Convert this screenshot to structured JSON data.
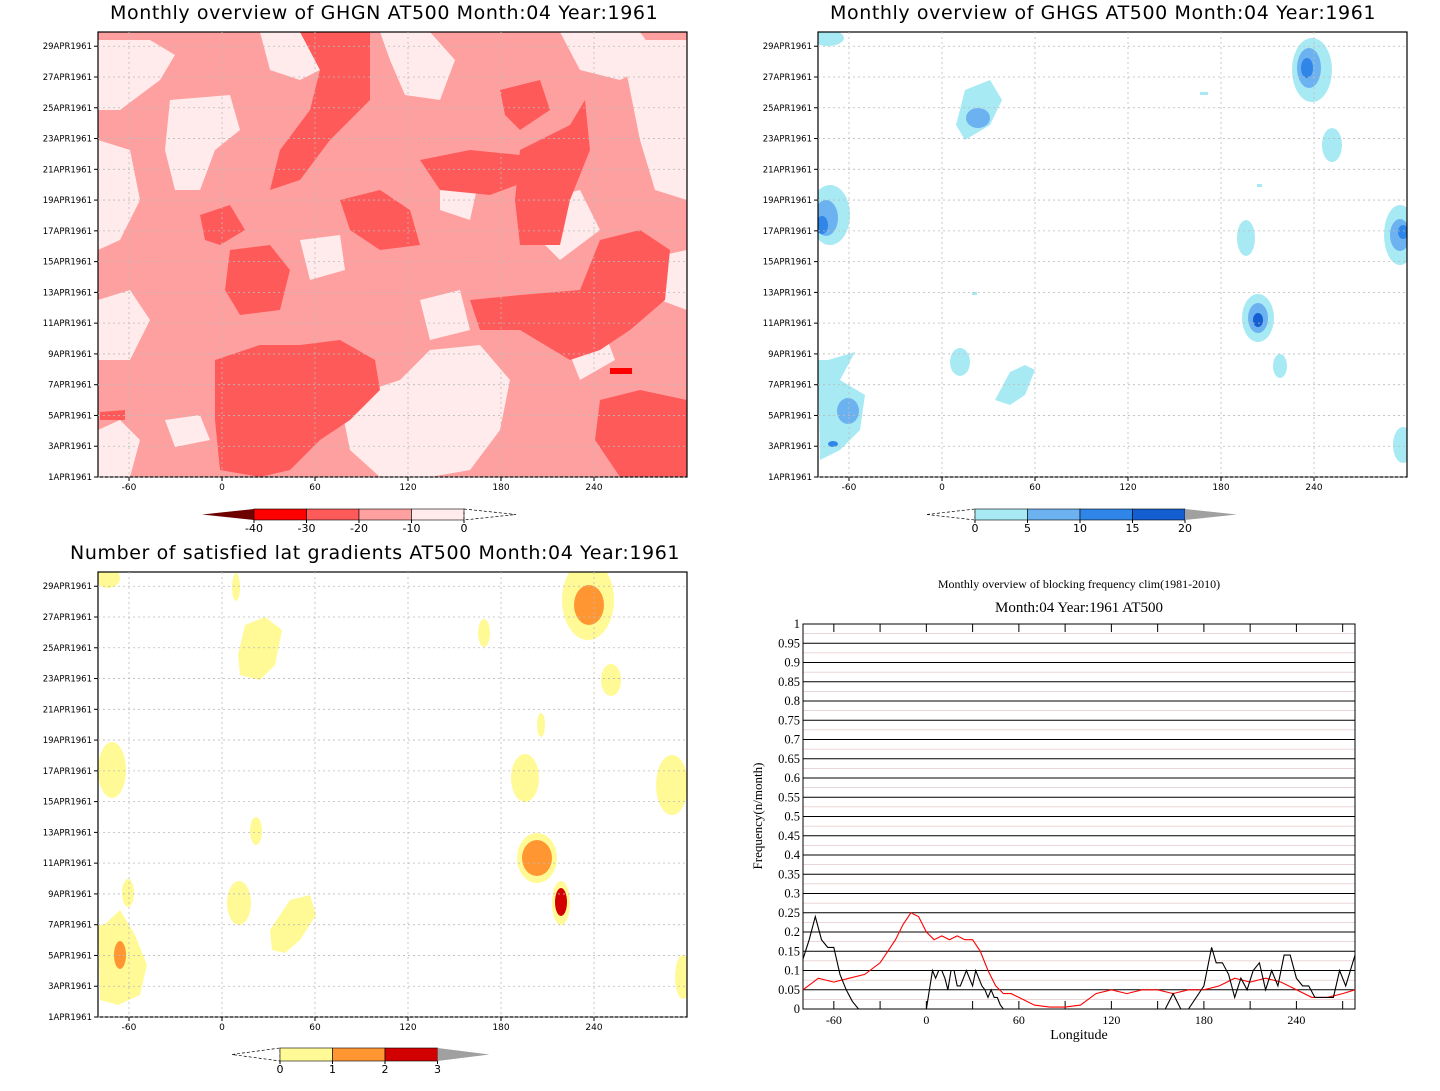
{
  "charts": [
    {
      "title": "Monthly overview of GHGN AT500 Month:04 Year:1961",
      "type": "heatmap",
      "x_ticks": [
        "-60",
        "0",
        "60",
        "120",
        "180",
        "240"
      ],
      "y_ticks": [
        "1APR1961",
        "3APR1961",
        "5APR1961",
        "7APR1961",
        "9APR1961",
        "11APR1961",
        "13APR1961",
        "15APR1961",
        "17APR1961",
        "19APR1961",
        "21APR1961",
        "23APR1961",
        "25APR1961",
        "27APR1961",
        "29APR1961"
      ],
      "colorbar": {
        "labels": [
          "-40",
          "-30",
          "-20",
          "-10",
          "0"
        ],
        "colors": [
          "#6e0000",
          "#ff0000",
          "#ff5a5a",
          "#ffa0a0",
          "#ffebeb"
        ],
        "open_end": "right"
      },
      "field_colors": [
        "#ffebeb",
        "#ffa0a0",
        "#ff5a5a"
      ]
    },
    {
      "title": "Monthly overview of GHGS AT500 Month:04 Year:1961",
      "type": "heatmap",
      "x_ticks": [
        "-60",
        "0",
        "60",
        "120",
        "180",
        "240"
      ],
      "y_ticks": [
        "1APR1961",
        "3APR1961",
        "5APR1961",
        "7APR1961",
        "9APR1961",
        "11APR1961",
        "13APR1961",
        "15APR1961",
        "17APR1961",
        "19APR1961",
        "21APR1961",
        "23APR1961",
        "25APR1961",
        "27APR1961",
        "29APR1961"
      ],
      "colorbar": {
        "labels": [
          "0",
          "5",
          "10",
          "15",
          "20"
        ],
        "colors": [
          "#a8eaf4",
          "#6cb2f0",
          "#2f86e8",
          "#145ed2",
          "#a0a0a0"
        ],
        "open_end": "left"
      }
    },
    {
      "title": "Number of satisfied lat gradients AT500 Month:04 Year:1961",
      "type": "heatmap",
      "x_ticks": [
        "-60",
        "0",
        "60",
        "120",
        "180",
        "240"
      ],
      "y_ticks": [
        "1APR1961",
        "3APR1961",
        "5APR1961",
        "7APR1961",
        "9APR1961",
        "11APR1961",
        "13APR1961",
        "15APR1961",
        "17APR1961",
        "19APR1961",
        "21APR1961",
        "23APR1961",
        "25APR1961",
        "27APR1961",
        "29APR1961"
      ],
      "colorbar": {
        "labels": [
          "0",
          "1",
          "2",
          "3"
        ],
        "colors": [
          "#fffa96",
          "#ff9632",
          "#d20000",
          "#a0a0a0"
        ],
        "open_end": "left"
      }
    }
  ],
  "line_chart": {
    "title": "Monthly overview of blocking frequency clim(1981-2010)",
    "subtitle": "Month:04 Year:1961  AT500",
    "xlabel": "Longitude",
    "ylabel": "Frequency(n/month)",
    "x_ticks": [
      "-60",
      "0",
      "60",
      "120",
      "180",
      "240"
    ],
    "y_ticks": [
      "0",
      "0.05",
      "0.1",
      "0.15",
      "0.2",
      "0.25",
      "0.3",
      "0.35",
      "0.4",
      "0.45",
      "0.5",
      "0.55",
      "0.6",
      "0.65",
      "0.7",
      "0.75",
      "0.8",
      "0.85",
      "0.9",
      "0.95",
      "1"
    ]
  },
  "chart_data": [
    {
      "type": "heatmap",
      "title": "Monthly overview of GHGN AT500 Month:04 Year:1961",
      "x_range": [
        -80,
        300
      ],
      "y_range": [
        "1APR1961",
        "30APR1961"
      ],
      "levels": [
        -40,
        -30,
        -20,
        -10,
        0
      ]
    },
    {
      "type": "heatmap",
      "title": "Monthly overview of GHGS AT500 Month:04 Year:1961",
      "x_range": [
        -80,
        300
      ],
      "y_range": [
        "1APR1961",
        "30APR1961"
      ],
      "levels": [
        0,
        5,
        10,
        15,
        20
      ]
    },
    {
      "type": "heatmap",
      "title": "Number of satisfied lat gradients AT500 Month:04 Year:1961",
      "x_range": [
        -80,
        300
      ],
      "y_range": [
        "1APR1961",
        "30APR1961"
      ],
      "levels": [
        0,
        1,
        2,
        3
      ]
    },
    {
      "type": "line",
      "title": "Monthly overview of blocking frequency clim(1981-2010)",
      "xlabel": "Longitude",
      "ylabel": "Frequency(n/month)",
      "xlim": [
        -80,
        278
      ],
      "ylim": [
        0,
        1
      ],
      "series": [
        {
          "color": "#ff0000",
          "x": [
            -80,
            -70,
            -60,
            -50,
            -40,
            -30,
            -20,
            -15,
            -10,
            -5,
            0,
            5,
            10,
            15,
            20,
            25,
            30,
            35,
            40,
            45,
            50,
            55,
            60,
            70,
            80,
            90,
            100,
            110,
            120,
            130,
            140,
            150,
            160,
            170,
            180,
            190,
            200,
            210,
            220,
            230,
            240,
            250,
            260,
            270,
            278
          ],
          "y": [
            0.05,
            0.08,
            0.07,
            0.08,
            0.09,
            0.12,
            0.18,
            0.22,
            0.25,
            0.24,
            0.2,
            0.18,
            0.19,
            0.18,
            0.19,
            0.18,
            0.18,
            0.15,
            0.1,
            0.06,
            0.04,
            0.04,
            0.03,
            0.01,
            0.005,
            0.005,
            0.01,
            0.04,
            0.05,
            0.04,
            0.05,
            0.05,
            0.04,
            0.05,
            0.05,
            0.06,
            0.08,
            0.07,
            0.08,
            0.07,
            0.05,
            0.03,
            0.03,
            0.04,
            0.05
          ]
        },
        {
          "color": "#000000",
          "x": [
            -80,
            -76,
            -72,
            -68,
            -64,
            -60,
            -56,
            -52,
            -48,
            -44,
            0,
            2,
            4,
            6,
            8,
            10,
            12,
            14,
            16,
            18,
            20,
            22,
            24,
            26,
            28,
            30,
            32,
            34,
            36,
            38,
            40,
            42,
            44,
            46,
            48,
            50,
            52,
            155,
            160,
            165,
            170,
            180,
            182,
            185,
            188,
            192,
            196,
            200,
            204,
            208,
            212,
            216,
            220,
            224,
            228,
            232,
            236,
            240,
            244,
            248,
            252,
            256,
            260,
            264,
            268,
            272,
            278
          ],
          "y": [
            0.13,
            0.18,
            0.24,
            0.18,
            0.16,
            0.16,
            0.09,
            0.05,
            0.02,
            0.0,
            0.0,
            0.05,
            0.1,
            0.08,
            0.1,
            0.1,
            0.08,
            0.05,
            0.1,
            0.1,
            0.06,
            0.06,
            0.08,
            0.1,
            0.08,
            0.06,
            0.1,
            0.08,
            0.06,
            0.05,
            0.03,
            0.05,
            0.03,
            0.03,
            0.01,
            0.0,
            0.0,
            0.0,
            0.04,
            0.0,
            0.0,
            0.06,
            0.1,
            0.16,
            0.12,
            0.12,
            0.09,
            0.03,
            0.08,
            0.05,
            0.1,
            0.12,
            0.05,
            0.1,
            0.06,
            0.14,
            0.14,
            0.08,
            0.06,
            0.06,
            0.03,
            0.03,
            0.03,
            0.03,
            0.1,
            0.06,
            0.14
          ]
        }
      ]
    }
  ]
}
